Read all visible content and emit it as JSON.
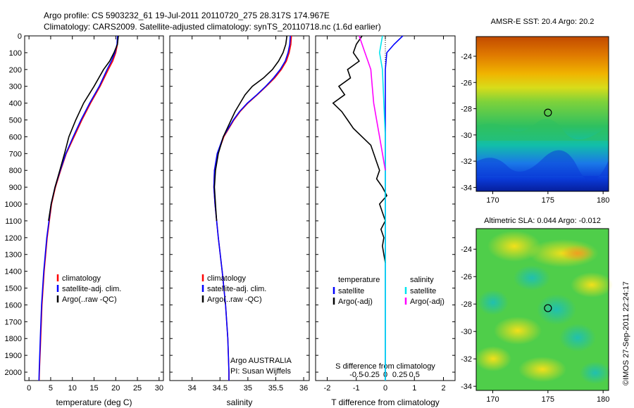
{
  "header": {
    "line1": "Argo profile: CS 5903232_61 19-Jul-2011 20110720_275 28.317S 174.967E",
    "line2": "Climatology: CARS2009. Satellite-adjusted climatology: synTS_20110718.nc (1.6d earlier)"
  },
  "side_label": "©IMOS 27-Sep-2011 22:24:17",
  "colors": {
    "climatology": "#ff0000",
    "satellite": "#0000ff",
    "argo": "#000000",
    "sal_satellite": "#00e5ee",
    "sal_argo": "#ff00ff"
  },
  "chart_data": [
    {
      "type": "line",
      "name": "temperature-profile",
      "xlabel": "temperature (deg C)",
      "xlim": [
        -1,
        31
      ],
      "ylim": [
        2050,
        0
      ],
      "xticks": [
        0,
        5,
        10,
        15,
        20,
        25,
        30
      ],
      "xtick_labels": [
        "0",
        "5",
        "10",
        "15",
        "20",
        "25",
        "30"
      ],
      "yticks": [
        0,
        100,
        200,
        300,
        400,
        500,
        600,
        700,
        800,
        900,
        1000,
        1100,
        1200,
        1300,
        1400,
        1500,
        1600,
        1700,
        1800,
        1900,
        2000
      ],
      "ytick_labels": [
        "0",
        "100",
        "200",
        "300",
        "400",
        "500",
        "600",
        "700",
        "800",
        "900",
        "1000",
        "1100",
        "1200",
        "1300",
        "1400",
        "1500",
        "1600",
        "1700",
        "1800",
        "1900",
        "2000"
      ],
      "legend": [
        "climatology",
        "satellite-adj. clim.",
        "Argo(..raw -QC)"
      ],
      "series": [
        {
          "name": "climatology",
          "color": "#ff0000",
          "depth": [
            0,
            50,
            100,
            150,
            200,
            300,
            400,
            500,
            600,
            700,
            800,
            900,
            1000,
            1200,
            1400,
            1600,
            1800,
            2000,
            2050
          ],
          "values": [
            20.5,
            20.4,
            20.0,
            19.3,
            18.3,
            16.4,
            14.2,
            12.2,
            10.4,
            8.6,
            7.3,
            6.1,
            5.2,
            4.2,
            3.5,
            3.0,
            2.7,
            2.4,
            2.35
          ]
        },
        {
          "name": "satellite-adj. clim.",
          "color": "#0000ff",
          "depth": [
            0,
            50,
            100,
            150,
            200,
            300,
            400,
            500,
            600,
            700,
            800,
            900,
            1000,
            1200,
            1400,
            1600,
            1800,
            2000,
            2050
          ],
          "values": [
            20.4,
            20.3,
            19.8,
            19.0,
            18.0,
            16.2,
            14.0,
            12.0,
            10.2,
            8.5,
            7.2,
            6.0,
            5.1,
            4.1,
            3.4,
            2.9,
            2.6,
            2.35,
            2.3
          ]
        },
        {
          "name": "Argo(..raw -QC)",
          "color": "#000000",
          "depth": [
            0,
            50,
            100,
            150,
            200,
            300,
            400,
            500,
            600,
            700,
            800,
            900,
            1000,
            1100
          ],
          "values": [
            20.6,
            20.4,
            19.6,
            18.6,
            17.2,
            15.0,
            12.6,
            10.8,
            9.2,
            8.2,
            7.1,
            6.0,
            5.1,
            4.5
          ]
        }
      ]
    },
    {
      "type": "line",
      "name": "salinity-profile",
      "xlabel": "salinity",
      "xlim": [
        33.6,
        36.1
      ],
      "ylim": [
        2050,
        0
      ],
      "xticks": [
        34,
        34.5,
        35,
        35.5,
        36
      ],
      "xtick_labels": [
        "34",
        "34.5",
        "35",
        "35.5",
        "36"
      ],
      "legend": [
        "climatology",
        "satellite-adj. clim.",
        "Argo(..raw -QC)"
      ],
      "annotation": [
        "Argo AUSTRALIA",
        "PI: Susan Wijffels"
      ],
      "series": [
        {
          "name": "climatology",
          "color": "#ff0000",
          "depth": [
            0,
            50,
            100,
            150,
            200,
            250,
            300,
            350,
            400,
            450,
            500,
            600,
            700,
            800,
            900,
            1000,
            1200,
            1400,
            1600,
            1800,
            2000,
            2050
          ],
          "values": [
            35.78,
            35.77,
            35.74,
            35.69,
            35.6,
            35.48,
            35.33,
            35.17,
            35.0,
            34.86,
            34.75,
            34.57,
            34.46,
            34.4,
            34.39,
            34.41,
            34.47,
            34.54,
            34.6,
            34.64,
            34.66,
            34.66
          ]
        },
        {
          "name": "satellite-adj. clim.",
          "color": "#0000ff",
          "depth": [
            0,
            50,
            100,
            150,
            200,
            250,
            300,
            350,
            400,
            450,
            500,
            600,
            700,
            800,
            900,
            1000,
            1200,
            1400,
            1600,
            1800,
            2000,
            2050
          ],
          "values": [
            35.76,
            35.75,
            35.72,
            35.67,
            35.58,
            35.46,
            35.32,
            35.16,
            34.99,
            34.85,
            34.74,
            34.56,
            34.45,
            34.4,
            34.39,
            34.41,
            34.47,
            34.54,
            34.6,
            34.64,
            34.66,
            34.66
          ]
        },
        {
          "name": "Argo(..raw -QC)",
          "color": "#000000",
          "depth": [
            0,
            50,
            100,
            150,
            200,
            250,
            300,
            350,
            400,
            450,
            500,
            600,
            700,
            800,
            900,
            1000,
            1100
          ],
          "values": [
            35.7,
            35.68,
            35.63,
            35.55,
            35.44,
            35.28,
            35.08,
            34.95,
            34.86,
            34.77,
            34.7,
            34.56,
            34.47,
            34.42,
            34.4,
            34.42,
            34.44
          ]
        }
      ]
    },
    {
      "type": "line",
      "name": "difference-profile",
      "xlabel": "T difference from climatology",
      "xlabel_top": "S difference from climatology",
      "xlim": [
        -2.4,
        2.4
      ],
      "ylim": [
        2050,
        0
      ],
      "xticks": [
        -2,
        -1,
        0,
        1,
        2
      ],
      "xtick_labels": [
        "-2",
        "-1",
        "0",
        "1",
        "2"
      ],
      "sal_tick_pos": [
        -1,
        -0.5,
        0,
        0.5,
        1
      ],
      "sal_tick_labels": [
        "-0.5",
        "-0.25",
        "0",
        "0.25",
        "0.5"
      ],
      "legend_temperature": {
        "heading": "temperature",
        "items": [
          "satellite",
          "Argo(-adj)"
        ]
      },
      "legend_salinity": {
        "heading": "salinity",
        "items": [
          "satellite",
          "Argo(-adj)"
        ]
      },
      "series": [
        {
          "name": "T satellite",
          "color": "#0000ff",
          "depth": [
            0,
            50,
            100,
            200,
            400,
            600,
            1000,
            1500,
            2000,
            2050
          ],
          "values": [
            0.6,
            0.3,
            0.05,
            0.0,
            0.0,
            0.0,
            0.0,
            0.0,
            0.0,
            0.0
          ]
        },
        {
          "name": "T Argo(-adj)",
          "color": "#000000",
          "depth": [
            0,
            50,
            100,
            150,
            200,
            250,
            300,
            350,
            400,
            450,
            500,
            550,
            600,
            650,
            700,
            750,
            800,
            850,
            900,
            950,
            1000,
            1050,
            1100,
            1150,
            1200,
            1250,
            1300,
            1350
          ],
          "values": [
            -0.8,
            -1.0,
            -1.1,
            -0.9,
            -1.3,
            -1.2,
            -1.6,
            -1.4,
            -1.8,
            -1.5,
            -1.3,
            -1.1,
            -0.8,
            -0.5,
            -0.4,
            -0.3,
            -0.2,
            -0.3,
            -0.1,
            0.05,
            -0.2,
            -0.1,
            0.0,
            -0.15,
            -0.05,
            -0.1,
            -0.05,
            0.0
          ]
        },
        {
          "name": "S satellite",
          "color": "#00e5ee",
          "depth": [
            0,
            100,
            200,
            400,
            600,
            800,
            1000,
            1500,
            2000,
            2050
          ],
          "values": [
            -0.1,
            -0.2,
            -0.1,
            -0.05,
            0.0,
            0.0,
            0.0,
            0.0,
            0.0,
            0.0
          ]
        },
        {
          "name": "S Argo(-adj)",
          "color": "#ff00ff",
          "depth": [
            0,
            50,
            100,
            150,
            200,
            300,
            400,
            500,
            600,
            700,
            800
          ],
          "values": [
            -0.9,
            -0.8,
            -0.7,
            -0.6,
            -0.5,
            -0.45,
            -0.4,
            -0.3,
            -0.2,
            -0.1,
            0.0
          ]
        }
      ]
    },
    {
      "type": "heatmap",
      "name": "sst-map",
      "title": "AMSR-E SST: 20.4 Argo: 20.2",
      "xlim": [
        168.5,
        180.5
      ],
      "ylim": [
        -34.3,
        -22.5
      ],
      "xticks": [
        170,
        175,
        180
      ],
      "xtick_labels": [
        "170",
        "175",
        "180"
      ],
      "yticks": [
        -24,
        -26,
        -28,
        -30,
        -32,
        -34
      ],
      "ytick_labels": [
        "-24",
        "-26",
        "-28",
        "-30",
        "-32",
        "-34"
      ],
      "marker": [
        175.0,
        -28.3
      ]
    },
    {
      "type": "heatmap",
      "name": "sla-map",
      "title": "Altimetric SLA: 0.044 Argo: -0.012",
      "xlim": [
        168.5,
        180.5
      ],
      "ylim": [
        -34.3,
        -22.5
      ],
      "xticks": [
        170,
        175,
        180
      ],
      "xtick_labels": [
        "170",
        "175",
        "180"
      ],
      "yticks": [
        -24,
        -26,
        -28,
        -30,
        -32,
        -34
      ],
      "ytick_labels": [
        "-24",
        "-26",
        "-28",
        "-30",
        "-32",
        "-34"
      ],
      "marker": [
        175.0,
        -28.3
      ]
    }
  ]
}
